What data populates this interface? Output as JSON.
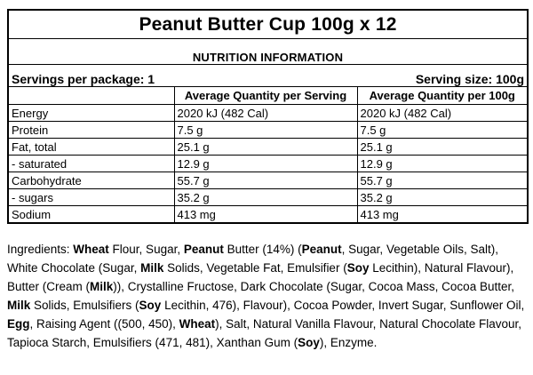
{
  "title": "Peanut Butter Cup 100g x 12",
  "nutrition_table": {
    "heading": "NUTRITION INFORMATION",
    "servings_per_package": "Servings per package: 1",
    "serving_size": "Serving size: 100g",
    "columns": [
      "",
      "Average Quantity per Serving",
      "Average Quantity per 100g"
    ],
    "rows": [
      {
        "label": "Energy",
        "per_serving": "2020 kJ (482 Cal)",
        "per_100g": "2020 kJ (482 Cal)"
      },
      {
        "label": "Protein",
        "per_serving": "7.5 g",
        "per_100g": "7.5 g"
      },
      {
        "label": "Fat, total",
        "per_serving": "25.1 g",
        "per_100g": "25.1 g"
      },
      {
        "label": "- saturated",
        "per_serving": "12.9 g",
        "per_100g": "12.9 g"
      },
      {
        "label": "Carbohydrate",
        "per_serving": "55.7 g",
        "per_100g": "55.7 g"
      },
      {
        "label": "- sugars",
        "per_serving": "35.2 g",
        "per_100g": "35.2 g"
      },
      {
        "label": "Sodium",
        "per_serving": "413 mg",
        "per_100g": "413 mg"
      }
    ]
  },
  "ingredients": {
    "segments": [
      {
        "text": "Ingredients: ",
        "bold": false
      },
      {
        "text": "Wheat",
        "bold": true
      },
      {
        "text": " Flour, Sugar, ",
        "bold": false
      },
      {
        "text": "Peanut",
        "bold": true
      },
      {
        "text": " Butter (14%) (",
        "bold": false
      },
      {
        "text": "Peanut",
        "bold": true
      },
      {
        "text": ", Sugar, Vegetable Oils, Salt), White Chocolate (Sugar, ",
        "bold": false
      },
      {
        "text": "Milk",
        "bold": true
      },
      {
        "text": " Solids, Vegetable Fat, Emulsifier (",
        "bold": false
      },
      {
        "text": "Soy",
        "bold": true
      },
      {
        "text": " Lecithin), Natural Flavour), Butter (Cream (",
        "bold": false
      },
      {
        "text": "Milk",
        "bold": true
      },
      {
        "text": ")), Crystalline Fructose, Dark Chocolate (Sugar, Cocoa Mass, Cocoa Butter, ",
        "bold": false
      },
      {
        "text": "Milk",
        "bold": true
      },
      {
        "text": " Solids, Emulsifiers (",
        "bold": false
      },
      {
        "text": "Soy",
        "bold": true
      },
      {
        "text": " Lecithin, 476), Flavour), Cocoa Powder, Invert Sugar, Sunflower Oil, ",
        "bold": false
      },
      {
        "text": "Egg",
        "bold": true
      },
      {
        "text": ", Raising Agent ((500, 450), ",
        "bold": false
      },
      {
        "text": "Wheat",
        "bold": true
      },
      {
        "text": "), Salt, Natural Vanilla Flavour, Natural Chocolate Flavour, Tapioca Starch, Emulsifiers (471, 481), Xanthan Gum (",
        "bold": false
      },
      {
        "text": "Soy",
        "bold": true
      },
      {
        "text": "), Enzyme.",
        "bold": false
      }
    ]
  },
  "colors": {
    "text": "#000000",
    "border": "#000000",
    "background": "#ffffff"
  }
}
